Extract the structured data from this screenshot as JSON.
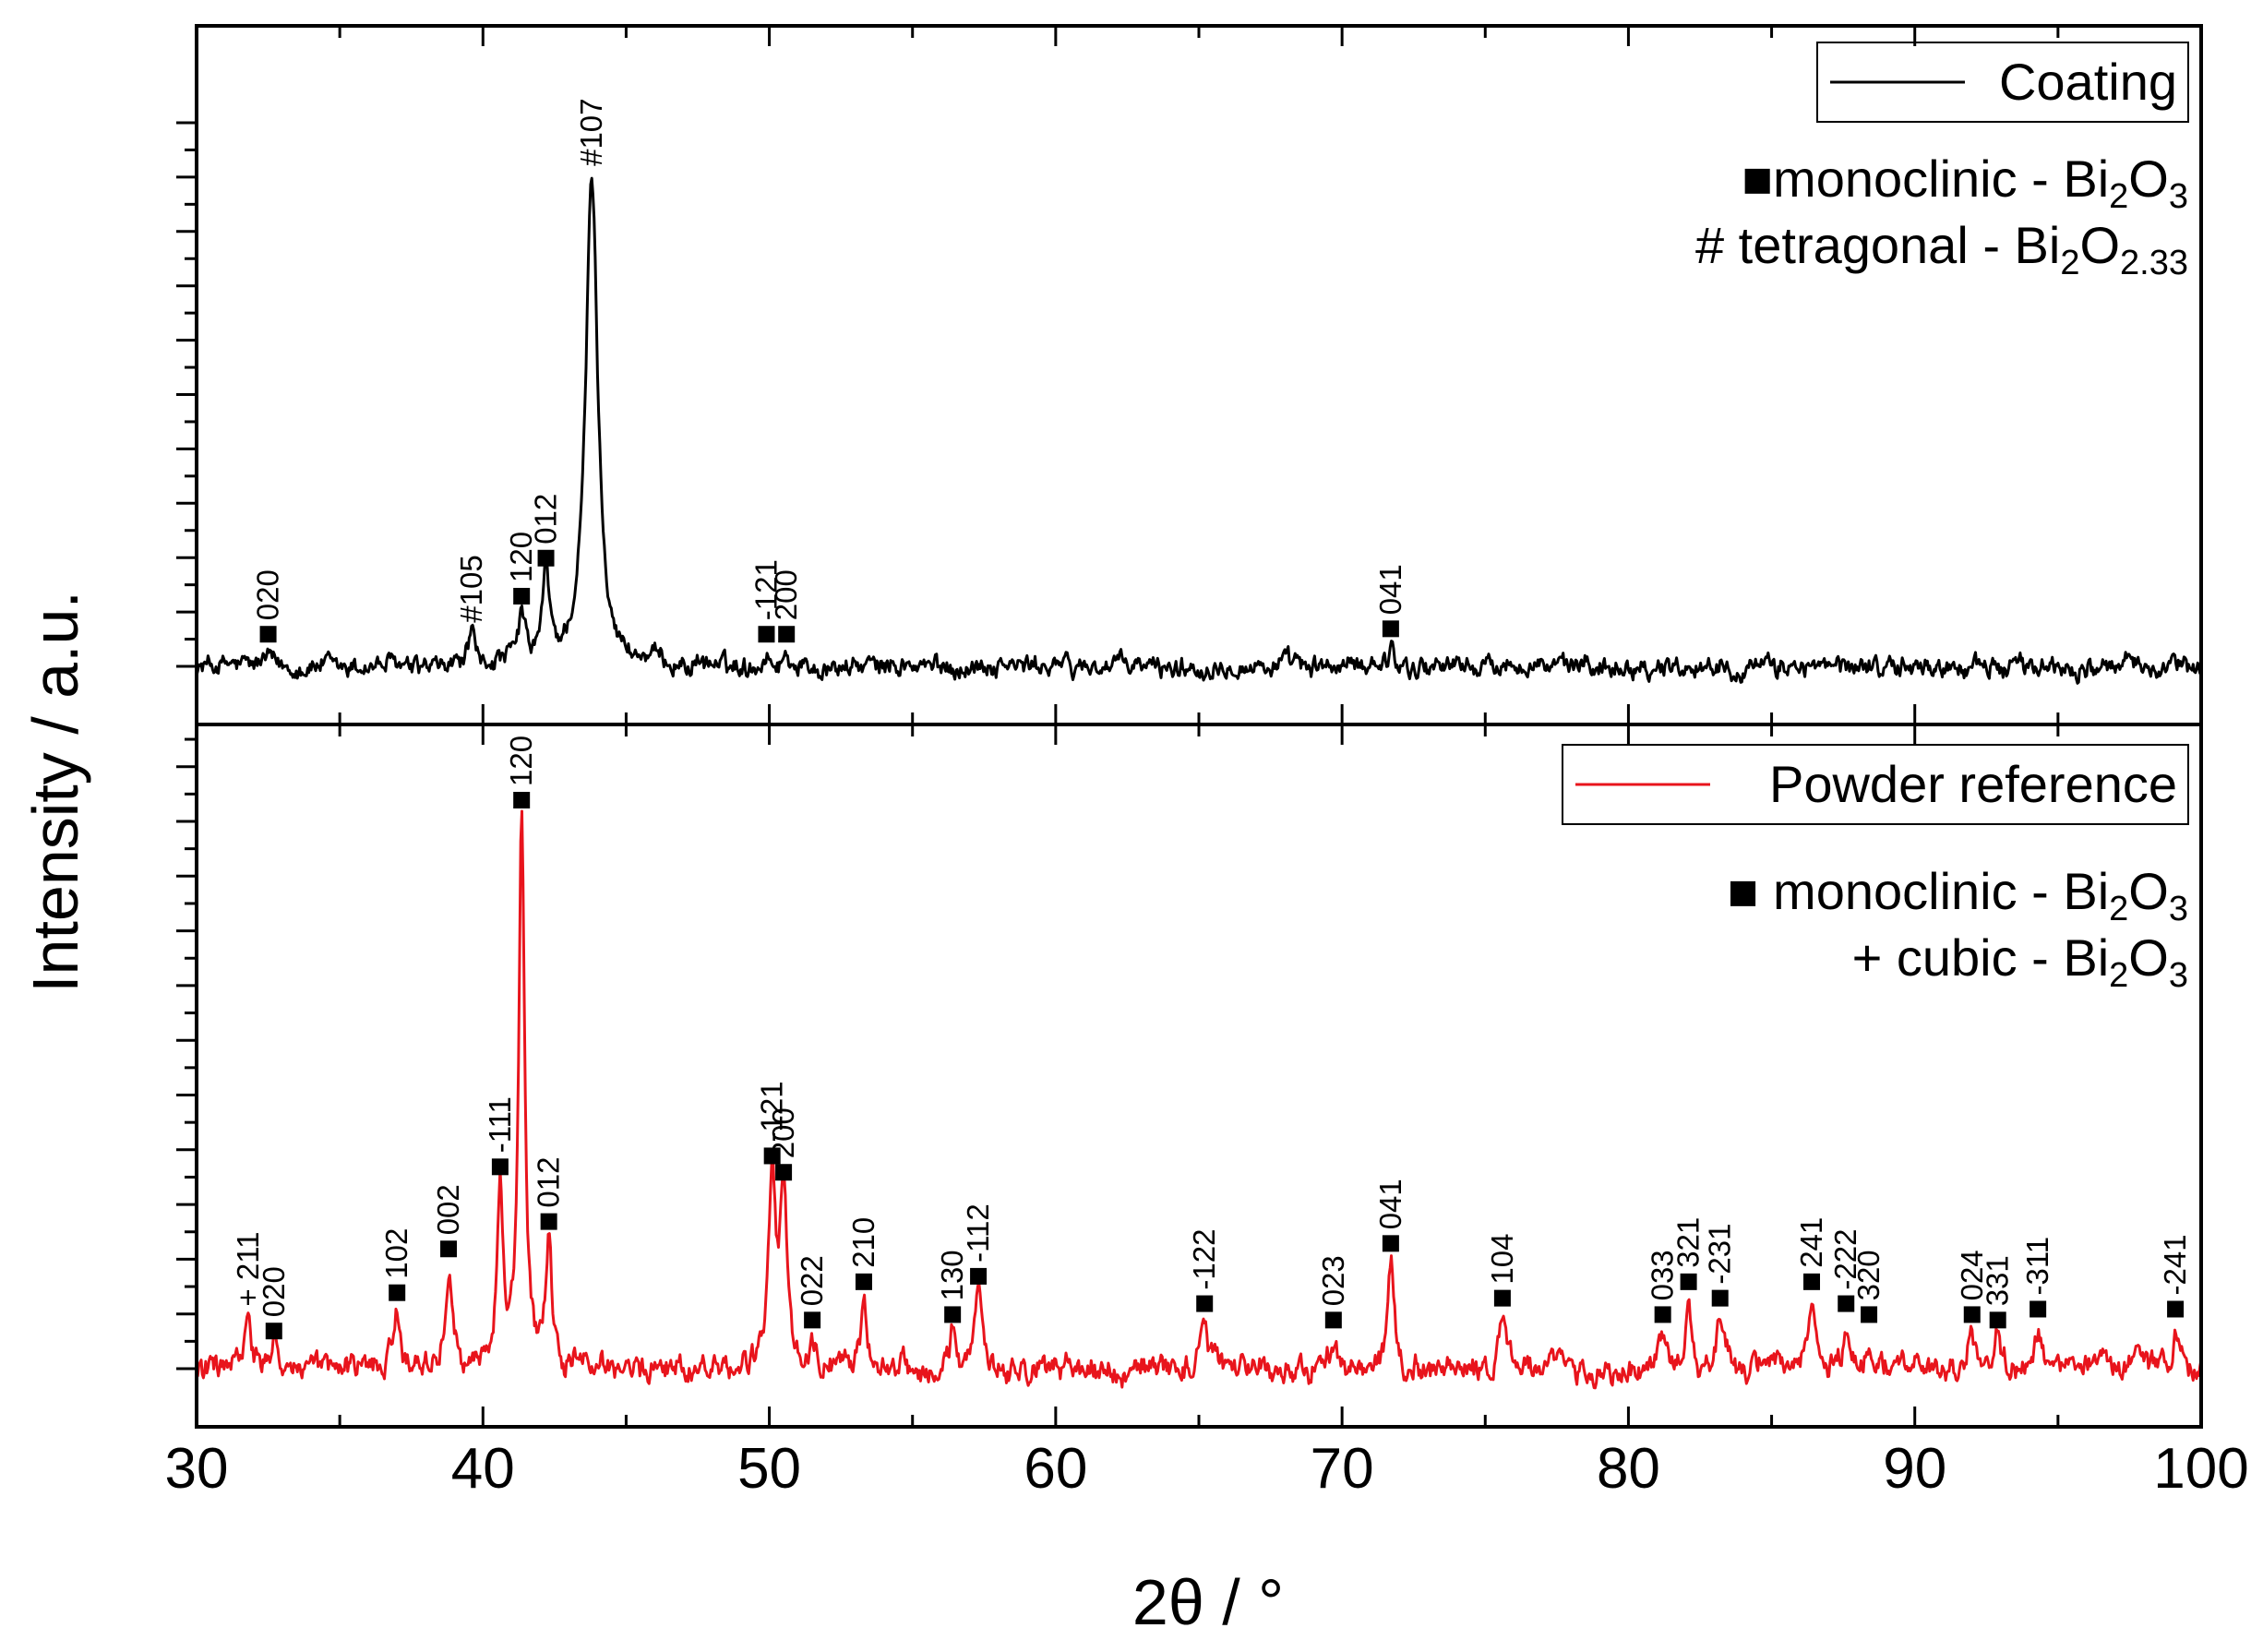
{
  "chart_data": {
    "type": "line",
    "xlabel": "2θ / °",
    "ylabel": "Intensity / a.u.",
    "xlim": [
      30,
      100
    ],
    "x_ticks": [
      "30",
      "40",
      "50",
      "60",
      "70",
      "80",
      "90",
      "100"
    ],
    "panels": [
      {
        "name": "coating",
        "legend": "Coating",
        "color": "#000000",
        "ylim": [
          -1.0,
          10.0
        ],
        "annotations": [
          {
            "marker": "■",
            "text": "monoclinic - Bi",
            "sub1": "2",
            "mid": "O",
            "sub2": "3"
          },
          {
            "marker": "#",
            "text": " tetragonal - Bi",
            "sub1": "2",
            "mid": "O",
            "sub2": "2.33"
          }
        ],
        "peaks": [
          {
            "x": 43.8,
            "h": 9.0,
            "w": 0.25,
            "label": "#107",
            "marker": ""
          },
          {
            "x": 42.2,
            "h": 1.6,
            "w": 0.15,
            "label": "012",
            "marker": "■"
          },
          {
            "x": 41.35,
            "h": 0.9,
            "w": 0.13,
            "label": "120",
            "marker": "■"
          },
          {
            "x": 39.6,
            "h": 0.6,
            "w": 0.14,
            "label": "#105",
            "marker": ""
          },
          {
            "x": 32.5,
            "h": 0.2,
            "w": 0.15,
            "label": "020",
            "marker": "■"
          },
          {
            "x": 49.9,
            "h": 0.2,
            "w": 0.15,
            "label": "-121",
            "marker": "■"
          },
          {
            "x": 50.6,
            "h": 0.2,
            "w": 0.15,
            "label": "200",
            "marker": "■"
          },
          {
            "x": 71.7,
            "h": 0.3,
            "w": 0.15,
            "label": "041",
            "marker": "■"
          }
        ],
        "noise": 0.16
      },
      {
        "name": "powder",
        "legend": "Powder reference",
        "color": "#e8141c",
        "ylim": [
          -1.0,
          12.0
        ],
        "annotations": [
          {
            "marker": "■",
            "text": " monoclinic - Bi",
            "sub1": "2",
            "mid": "O",
            "sub2": "3"
          },
          {
            "marker": "+",
            "text": " cubic - Bi",
            "sub1": "2",
            "mid": "O",
            "sub2": "3"
          }
        ],
        "peaks": [
          {
            "x": 31.8,
            "h": 0.9,
            "w": 0.12,
            "label": "+ 211",
            "marker": ""
          },
          {
            "x": 32.7,
            "h": 0.3,
            "w": 0.12,
            "label": "020",
            "marker": "■"
          },
          {
            "x": 37.0,
            "h": 1.0,
            "w": 0.13,
            "label": "102",
            "marker": "■"
          },
          {
            "x": 38.8,
            "h": 1.8,
            "w": 0.13,
            "label": "002",
            "marker": "■"
          },
          {
            "x": 40.6,
            "h": 3.3,
            "w": 0.12,
            "label": "-111",
            "marker": "■"
          },
          {
            "x": 41.35,
            "h": 10.0,
            "w": 0.12,
            "label": "120",
            "marker": "■"
          },
          {
            "x": 42.3,
            "h": 2.3,
            "w": 0.12,
            "label": "012",
            "marker": "■"
          },
          {
            "x": 50.1,
            "h": 3.5,
            "w": 0.14,
            "label": "-121",
            "marker": "■"
          },
          {
            "x": 50.5,
            "h": 3.2,
            "w": 0.14,
            "label": "200",
            "marker": "■"
          },
          {
            "x": 51.5,
            "h": 0.5,
            "w": 0.12,
            "label": "022",
            "marker": "■"
          },
          {
            "x": 53.3,
            "h": 1.2,
            "w": 0.13,
            "label": "210",
            "marker": "■"
          },
          {
            "x": 56.4,
            "h": 0.6,
            "w": 0.13,
            "label": "130",
            "marker": "■"
          },
          {
            "x": 57.3,
            "h": 1.3,
            "w": 0.13,
            "label": "-112",
            "marker": "■"
          },
          {
            "x": 65.2,
            "h": 0.8,
            "w": 0.13,
            "label": "-122",
            "marker": "■"
          },
          {
            "x": 69.7,
            "h": 0.5,
            "w": 0.13,
            "label": "023",
            "marker": "■"
          },
          {
            "x": 71.7,
            "h": 1.9,
            "w": 0.14,
            "label": "041",
            "marker": "■"
          },
          {
            "x": 75.6,
            "h": 0.9,
            "w": 0.13,
            "label": "104",
            "marker": "■"
          },
          {
            "x": 81.2,
            "h": 0.6,
            "w": 0.13,
            "label": "033",
            "marker": "■"
          },
          {
            "x": 82.1,
            "h": 1.2,
            "w": 0.13,
            "label": "321",
            "marker": "■"
          },
          {
            "x": 83.2,
            "h": 0.9,
            "w": 0.13,
            "label": "-231",
            "marker": "■"
          },
          {
            "x": 86.4,
            "h": 1.2,
            "w": 0.13,
            "label": "241",
            "marker": "■"
          },
          {
            "x": 87.6,
            "h": 0.8,
            "w": 0.13,
            "label": "-222",
            "marker": "■"
          },
          {
            "x": 88.4,
            "h": 0.6,
            "w": 0.13,
            "label": "320",
            "marker": "■"
          },
          {
            "x": 92.0,
            "h": 0.6,
            "w": 0.13,
            "label": "024",
            "marker": "■"
          },
          {
            "x": 92.9,
            "h": 0.5,
            "w": 0.13,
            "label": "331",
            "marker": "■"
          },
          {
            "x": 94.3,
            "h": 0.7,
            "w": 0.13,
            "label": "-311",
            "marker": "■"
          },
          {
            "x": 99.1,
            "h": 0.7,
            "w": 0.13,
            "label": "-241",
            "marker": "■"
          }
        ],
        "noise": 0.2
      }
    ]
  }
}
